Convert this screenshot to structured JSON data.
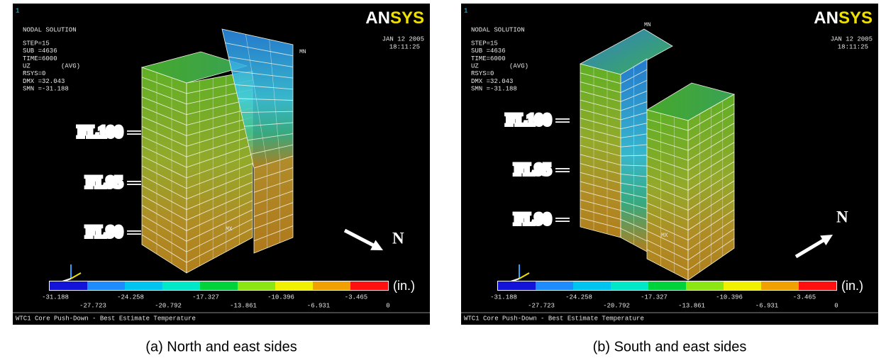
{
  "panels": [
    {
      "index": "1",
      "result_title": "NODAL SOLUTION",
      "info": [
        "STEP=15",
        "SUB =4636",
        "TIME=6000",
        "UZ        (AVG)",
        "RSYS=0",
        "DMX =32.043",
        "SMN =-31.188"
      ],
      "logo_a": "AN",
      "logo_b": "SYS",
      "date": "JAN 12 2005",
      "time": "18:11:25",
      "min_marker": "MN",
      "max_marker": "MX",
      "floors": [
        "FL100",
        "FL95",
        "FL90"
      ],
      "north": "N",
      "legend_levels": [
        "-31.188",
        "-27.723",
        "-24.258",
        "-20.792",
        "-17.327",
        "-13.861",
        "-10.396",
        "-6.931",
        "-3.465",
        "0"
      ],
      "unit": "(in.)",
      "footer": "WTC1 Core Push-Down - Best Estimate Temperature",
      "caption": "(a) North and east sides"
    },
    {
      "index": "1",
      "result_title": "NODAL SOLUTION",
      "info": [
        "STEP=15",
        "SUB =4636",
        "TIME=6000",
        "UZ        (AVG)",
        "RSYS=0",
        "DMX =32.043",
        "SMN =-31.188"
      ],
      "logo_a": "AN",
      "logo_b": "SYS",
      "date": "JAN 12 2005",
      "time": "18:11:25",
      "min_marker": "MN",
      "max_marker": "MX",
      "floors": [
        "FL100",
        "FL95",
        "FL90"
      ],
      "north": "N",
      "legend_levels": [
        "-31.188",
        "-27.723",
        "-24.258",
        "-20.792",
        "-17.327",
        "-13.861",
        "-10.396",
        "-6.931",
        "-3.465",
        "0"
      ],
      "unit": "(in.)",
      "footer": "WTC1 Core Push-Down - Best Estimate Temperature",
      "caption": "(b) South and east sides"
    }
  ]
}
